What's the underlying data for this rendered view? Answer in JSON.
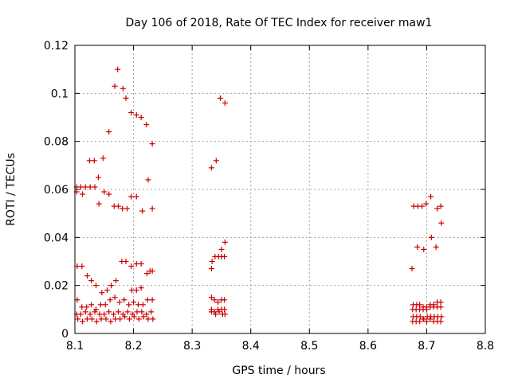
{
  "chart_data": {
    "type": "scatter",
    "title": "Day 106 of 2018, Rate Of TEC Index for receiver maw1",
    "xlabel": "GPS time / hours",
    "ylabel": "ROTI / TECUs",
    "xlim": [
      8.1,
      8.8
    ],
    "ylim": [
      0,
      0.12
    ],
    "x_ticks": [
      "8.1",
      "8.2",
      "8.3",
      "8.4",
      "8.5",
      "8.6",
      "8.7",
      "8.8"
    ],
    "y_ticks": [
      "0",
      "0.02",
      "0.04",
      "0.06",
      "0.08",
      "0.1",
      "0.12"
    ],
    "grid": true,
    "marker": "+",
    "color": "#cc0000",
    "series": [
      {
        "name": "ROTI",
        "points": [
          [
            8.173,
            0.11
          ],
          [
            8.168,
            0.103
          ],
          [
            8.182,
            0.102
          ],
          [
            8.187,
            0.098
          ],
          [
            8.196,
            0.092
          ],
          [
            8.205,
            0.091
          ],
          [
            8.213,
            0.09
          ],
          [
            8.222,
            0.087
          ],
          [
            8.158,
            0.084
          ],
          [
            8.232,
            0.079
          ],
          [
            8.148,
            0.073
          ],
          [
            8.125,
            0.072
          ],
          [
            8.133,
            0.072
          ],
          [
            8.225,
            0.064
          ],
          [
            8.14,
            0.065
          ],
          [
            8.103,
            0.061
          ],
          [
            8.11,
            0.061
          ],
          [
            8.118,
            0.061
          ],
          [
            8.126,
            0.061
          ],
          [
            8.134,
            0.061
          ],
          [
            8.103,
            0.059
          ],
          [
            8.113,
            0.058
          ],
          [
            8.15,
            0.059
          ],
          [
            8.158,
            0.058
          ],
          [
            8.196,
            0.057
          ],
          [
            8.205,
            0.057
          ],
          [
            8.141,
            0.054
          ],
          [
            8.167,
            0.053
          ],
          [
            8.174,
            0.053
          ],
          [
            8.181,
            0.052
          ],
          [
            8.189,
            0.052
          ],
          [
            8.215,
            0.051
          ],
          [
            8.232,
            0.052
          ],
          [
            8.104,
            0.028
          ],
          [
            8.112,
            0.028
          ],
          [
            8.121,
            0.024
          ],
          [
            8.128,
            0.022
          ],
          [
            8.136,
            0.02
          ],
          [
            8.146,
            0.017
          ],
          [
            8.155,
            0.018
          ],
          [
            8.162,
            0.02
          ],
          [
            8.17,
            0.022
          ],
          [
            8.18,
            0.03
          ],
          [
            8.187,
            0.03
          ],
          [
            8.196,
            0.028
          ],
          [
            8.205,
            0.029
          ],
          [
            8.213,
            0.029
          ],
          [
            8.223,
            0.025
          ],
          [
            8.228,
            0.026
          ],
          [
            8.232,
            0.026
          ],
          [
            8.197,
            0.018
          ],
          [
            8.205,
            0.018
          ],
          [
            8.213,
            0.019
          ],
          [
            8.104,
            0.014
          ],
          [
            8.112,
            0.011
          ],
          [
            8.12,
            0.011
          ],
          [
            8.128,
            0.012
          ],
          [
            8.136,
            0.01
          ],
          [
            8.144,
            0.012
          ],
          [
            8.152,
            0.012
          ],
          [
            8.16,
            0.014
          ],
          [
            8.168,
            0.015
          ],
          [
            8.176,
            0.013
          ],
          [
            8.184,
            0.014
          ],
          [
            8.192,
            0.012
          ],
          [
            8.2,
            0.013
          ],
          [
            8.208,
            0.012
          ],
          [
            8.216,
            0.012
          ],
          [
            8.224,
            0.014
          ],
          [
            8.232,
            0.014
          ],
          [
            8.103,
            0.008
          ],
          [
            8.11,
            0.008
          ],
          [
            8.118,
            0.009
          ],
          [
            8.126,
            0.008
          ],
          [
            8.134,
            0.009
          ],
          [
            8.142,
            0.008
          ],
          [
            8.15,
            0.008
          ],
          [
            8.158,
            0.009
          ],
          [
            8.166,
            0.008
          ],
          [
            8.174,
            0.009
          ],
          [
            8.182,
            0.008
          ],
          [
            8.19,
            0.009
          ],
          [
            8.198,
            0.008
          ],
          [
            8.206,
            0.009
          ],
          [
            8.214,
            0.009
          ],
          [
            8.222,
            0.008
          ],
          [
            8.23,
            0.009
          ],
          [
            8.105,
            0.006
          ],
          [
            8.113,
            0.005
          ],
          [
            8.121,
            0.006
          ],
          [
            8.129,
            0.006
          ],
          [
            8.137,
            0.005
          ],
          [
            8.145,
            0.006
          ],
          [
            8.153,
            0.006
          ],
          [
            8.161,
            0.005
          ],
          [
            8.169,
            0.006
          ],
          [
            8.177,
            0.006
          ],
          [
            8.185,
            0.007
          ],
          [
            8.193,
            0.006
          ],
          [
            8.201,
            0.007
          ],
          [
            8.209,
            0.006
          ],
          [
            8.217,
            0.007
          ],
          [
            8.225,
            0.006
          ],
          [
            8.233,
            0.006
          ],
          [
            8.348,
            0.098
          ],
          [
            8.356,
            0.096
          ],
          [
            8.341,
            0.072
          ],
          [
            8.333,
            0.069
          ],
          [
            8.356,
            0.038
          ],
          [
            8.35,
            0.035
          ],
          [
            8.333,
            0.027
          ],
          [
            8.334,
            0.03
          ],
          [
            8.339,
            0.032
          ],
          [
            8.345,
            0.032
          ],
          [
            8.35,
            0.032
          ],
          [
            8.355,
            0.032
          ],
          [
            8.333,
            0.015
          ],
          [
            8.338,
            0.014
          ],
          [
            8.344,
            0.013
          ],
          [
            8.35,
            0.014
          ],
          [
            8.355,
            0.014
          ],
          [
            8.333,
            0.01
          ],
          [
            8.338,
            0.009
          ],
          [
            8.344,
            0.01
          ],
          [
            8.35,
            0.01
          ],
          [
            8.355,
            0.01
          ],
          [
            8.333,
            0.009
          ],
          [
            8.34,
            0.008
          ],
          [
            8.346,
            0.009
          ],
          [
            8.352,
            0.008
          ],
          [
            8.356,
            0.008
          ],
          [
            8.707,
            0.057
          ],
          [
            8.718,
            0.052
          ],
          [
            8.724,
            0.053
          ],
          [
            8.678,
            0.053
          ],
          [
            8.685,
            0.053
          ],
          [
            8.692,
            0.053
          ],
          [
            8.699,
            0.054
          ],
          [
            8.725,
            0.046
          ],
          [
            8.708,
            0.04
          ],
          [
            8.684,
            0.036
          ],
          [
            8.695,
            0.035
          ],
          [
            8.716,
            0.036
          ],
          [
            8.675,
            0.027
          ],
          [
            8.677,
            0.012
          ],
          [
            8.683,
            0.012
          ],
          [
            8.688,
            0.012
          ],
          [
            8.694,
            0.011
          ],
          [
            8.7,
            0.011
          ],
          [
            8.706,
            0.012
          ],
          [
            8.712,
            0.012
          ],
          [
            8.718,
            0.013
          ],
          [
            8.724,
            0.013
          ],
          [
            8.676,
            0.01
          ],
          [
            8.682,
            0.01
          ],
          [
            8.688,
            0.01
          ],
          [
            8.694,
            0.01
          ],
          [
            8.7,
            0.01
          ],
          [
            8.706,
            0.011
          ],
          [
            8.712,
            0.011
          ],
          [
            8.718,
            0.011
          ],
          [
            8.724,
            0.011
          ],
          [
            8.677,
            0.007
          ],
          [
            8.683,
            0.007
          ],
          [
            8.689,
            0.007
          ],
          [
            8.695,
            0.006
          ],
          [
            8.701,
            0.007
          ],
          [
            8.707,
            0.007
          ],
          [
            8.713,
            0.007
          ],
          [
            8.719,
            0.007
          ],
          [
            8.725,
            0.007
          ],
          [
            8.676,
            0.005
          ],
          [
            8.682,
            0.005
          ],
          [
            8.688,
            0.005
          ],
          [
            8.694,
            0.006
          ],
          [
            8.7,
            0.005
          ],
          [
            8.706,
            0.006
          ],
          [
            8.712,
            0.005
          ],
          [
            8.718,
            0.005
          ],
          [
            8.724,
            0.005
          ]
        ]
      }
    ]
  }
}
